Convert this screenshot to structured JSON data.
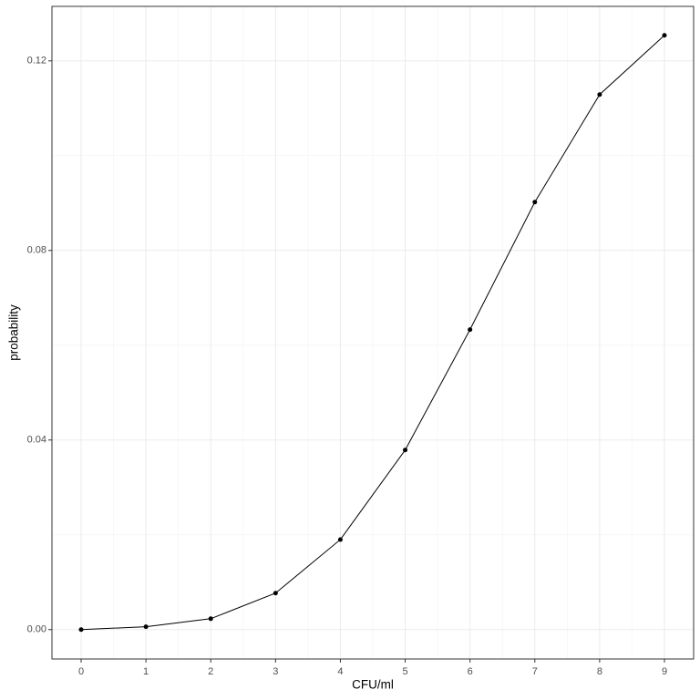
{
  "chart_data": {
    "type": "line",
    "x_label": "CFU/ml",
    "y_label": "probability",
    "x": [
      0,
      1,
      2,
      3,
      4,
      5,
      6,
      7,
      8,
      9
    ],
    "series": [
      {
        "color": "#000000",
        "values": [
          0,
          0.0006,
          0.0023,
          0.0077,
          0.019,
          0.0379,
          0.0633,
          0.0902,
          0.1129,
          0.1254
        ]
      }
    ],
    "xlim": [
      -0.45,
      9.45
    ],
    "xticks": [
      0,
      1,
      2,
      3,
      4,
      5,
      6,
      7,
      8,
      9
    ],
    "ylim": [
      -0.0062,
      0.1315
    ],
    "yticks": [
      {
        "value": 0,
        "label": "0.00"
      },
      {
        "value": 0.04,
        "label": "0.04"
      },
      {
        "value": 0.08,
        "label": "0.08"
      },
      {
        "value": 0.12,
        "label": "0.12"
      }
    ],
    "grid": true
  }
}
